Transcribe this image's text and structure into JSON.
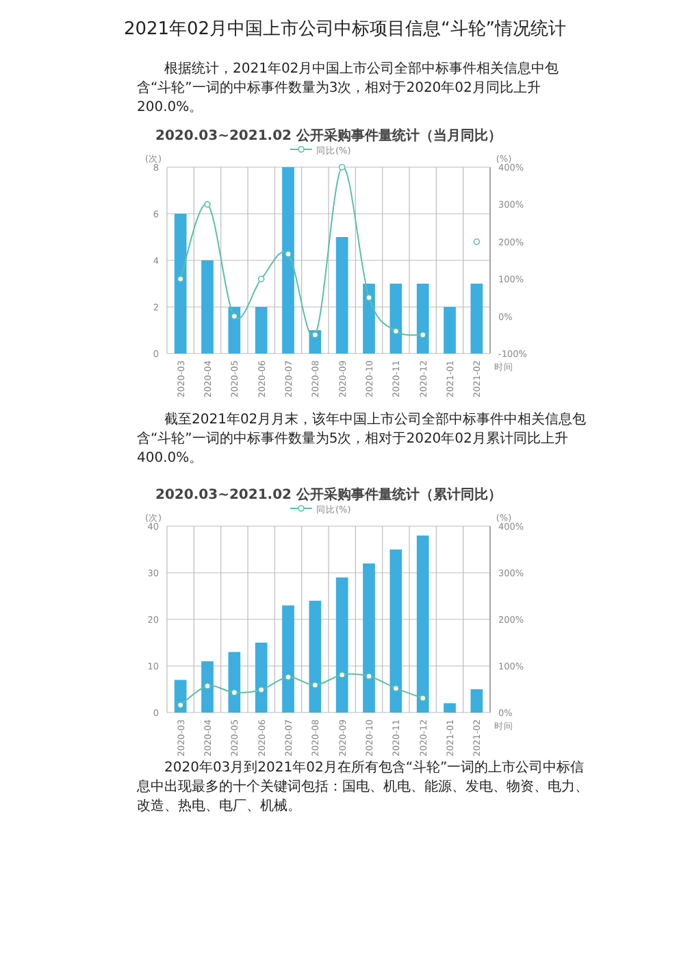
{
  "chart_data": [
    {
      "type": "bar",
      "title": "2020.03~2021.02 公开采购事件量统计（当月同比）",
      "annotations": [
        "2021年02月中国上市公司中标项目信息“斗轮”情况统计",
        "根据统计，2021年02月中国上市公司全部中标事件相关信息中包含“斗轮”一词的中标事件数量为3次，相对于2020年02月同比上升200.0%。"
      ],
      "xlabel": "时间",
      "ylabel": "(次)",
      "y2label": "(%)",
      "categories": [
        "2020-03",
        "2020-04",
        "2020-05",
        "2020-06",
        "2020-07",
        "2020-08",
        "2020-09",
        "2020-10",
        "2020-11",
        "2020-12",
        "2021-01",
        "2021-02"
      ],
      "series": [
        {
          "color": "#3caee0",
          "values": [
            6,
            4,
            2,
            2,
            8,
            1,
            5,
            3,
            3,
            3,
            2,
            3
          ]
        },
        {
          "type": "line",
          "name": "同比(%)",
          "axis": "y2",
          "color": "#5cbfa8",
          "values": [
            100,
            300,
            0,
            100,
            167,
            -50,
            400,
            50,
            -40,
            -50,
            null,
            200
          ]
        }
      ],
      "ylim": [
        0,
        8
      ],
      "yticks": [
        0,
        2,
        4,
        6,
        8
      ],
      "y2lim": [
        -100,
        400
      ],
      "y2ticks": [
        {
          "value": -100,
          "label": "-100%"
        },
        {
          "value": 0,
          "label": "0%"
        },
        {
          "value": 100,
          "label": "100%"
        },
        {
          "value": 200,
          "label": "200%"
        },
        {
          "value": 300,
          "label": "300%"
        },
        {
          "value": 400,
          "label": "400%"
        }
      ],
      "grid": true,
      "legend": "top",
      "marker": "circle"
    },
    {
      "type": "bar",
      "title": "2020.03~2021.02 公开采购事件量统计（累计同比）",
      "annotations": [
        "截至2021年02月月末，该年中国上市公司全部中标事件中相关信息包含“斗轮”一词的中标事件数量为5次，相对于2020年02月累计同比上升400.0%。",
        "2020年03月到2021年02月在所有包含“斗轮”一词的上市公司中标信息中出现最多的十个关键词包括：国电、机电、能源、发电、物资、电力、改造、热电、电厂、机械。"
      ],
      "xlabel": "时间",
      "ylabel": "(次)",
      "y2label": "(%)",
      "categories": [
        "2020-03",
        "2020-04",
        "2020-05",
        "2020-06",
        "2020-07",
        "2020-08",
        "2020-09",
        "2020-10",
        "2020-11",
        "2020-12",
        "2021-01",
        "2021-02"
      ],
      "series": [
        {
          "color": "#3caee0",
          "values": [
            7,
            11,
            13,
            15,
            23,
            24,
            29,
            32,
            35,
            38,
            2,
            5
          ]
        },
        {
          "type": "line",
          "name": "同比(%)",
          "axis": "y2",
          "color": "#5cbfa8",
          "values": [
            16,
            57,
            43,
            49,
            76,
            59,
            81,
            78,
            52,
            31,
            null,
            null
          ]
        }
      ],
      "ylim": [
        0,
        40
      ],
      "yticks": [
        0,
        10,
        20,
        30,
        40
      ],
      "y2lim": [
        0,
        400
      ],
      "y2ticks": [
        {
          "value": 0,
          "label": "0%"
        },
        {
          "value": 100,
          "label": "100%"
        },
        {
          "value": 200,
          "label": "200%"
        },
        {
          "value": 300,
          "label": "300%"
        },
        {
          "value": 400,
          "label": "400%"
        }
      ],
      "grid": true,
      "legend": "top",
      "marker": "circle"
    }
  ]
}
